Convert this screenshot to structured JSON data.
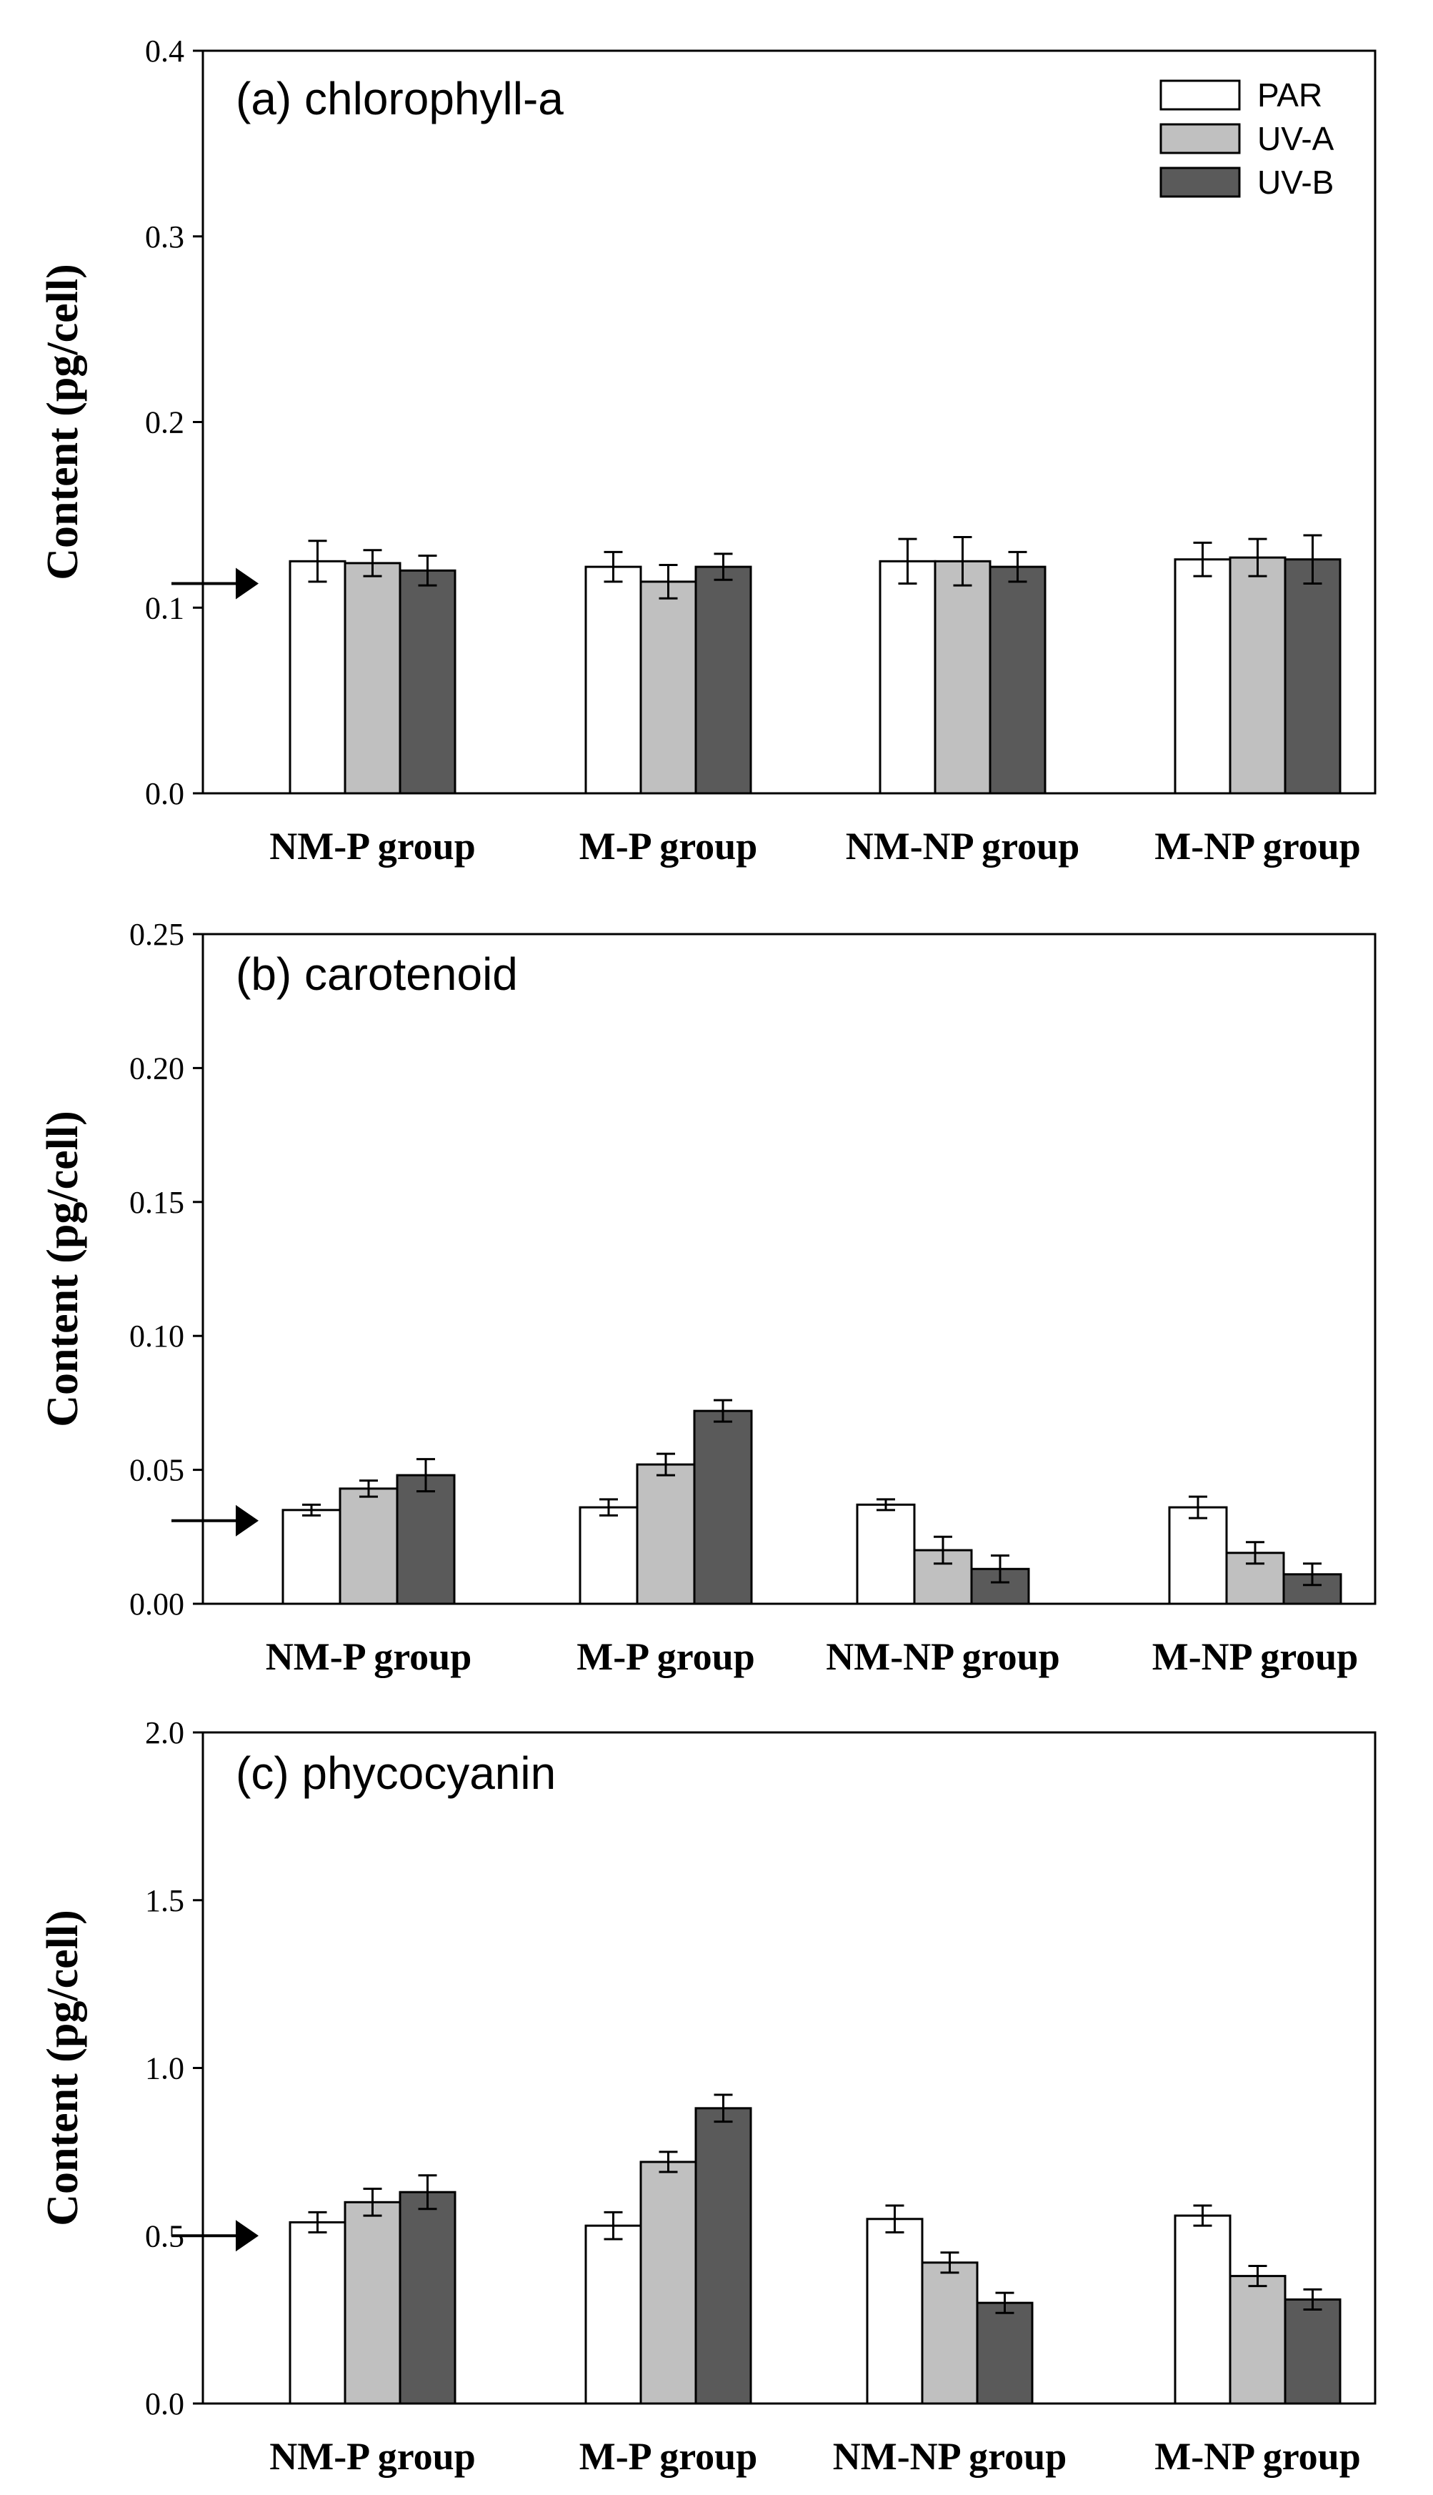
{
  "colors": {
    "PAR": "#ffffff",
    "UV-A": "#c0c0c0",
    "UV-B": "#5a5a5a",
    "stroke": "#000000"
  },
  "legend": [
    "PAR",
    "UV-A",
    "UV-B"
  ],
  "chart_data": [
    {
      "type": "bar",
      "title": "(a) chlorophyll-a",
      "ylabel": "Content (pg/cell)",
      "ylim": [
        0,
        0.4
      ],
      "yticks": [
        "0.0",
        "0.1",
        "0.2",
        "0.3",
        "0.4"
      ],
      "yticks_values": [
        0,
        0.1,
        0.2,
        0.3,
        0.4
      ],
      "arrow_value": 0.113,
      "categories": [
        "NM-P group",
        "M-P group",
        "NM-NP group",
        "M-NP group"
      ],
      "series": [
        {
          "name": "PAR",
          "values": [
            0.125,
            0.122,
            0.125,
            0.126
          ],
          "errors": [
            0.011,
            0.008,
            0.012,
            0.009
          ]
        },
        {
          "name": "UV-A",
          "values": [
            0.124,
            0.114,
            0.125,
            0.127
          ],
          "errors": [
            0.007,
            0.009,
            0.013,
            0.01
          ]
        },
        {
          "name": "UV-B",
          "values": [
            0.12,
            0.122,
            0.122,
            0.126
          ],
          "errors": [
            0.008,
            0.007,
            0.008,
            0.013
          ]
        }
      ]
    },
    {
      "type": "bar",
      "title": "(b) carotenoid",
      "ylabel": "Content (pg/cell)",
      "ylim": [
        0,
        0.25
      ],
      "yticks": [
        "0.00",
        "0.05",
        "0.10",
        "0.15",
        "0.20",
        "0.25"
      ],
      "yticks_values": [
        0,
        0.05,
        0.1,
        0.15,
        0.2,
        0.25
      ],
      "arrow_value": 0.031,
      "categories": [
        "NM-P group",
        "M-P group",
        "NM-NP group",
        "M-NP group"
      ],
      "series": [
        {
          "name": "PAR",
          "values": [
            0.035,
            0.036,
            0.037,
            0.036
          ],
          "errors": [
            0.002,
            0.003,
            0.002,
            0.004
          ]
        },
        {
          "name": "UV-A",
          "values": [
            0.043,
            0.052,
            0.02,
            0.019
          ],
          "errors": [
            0.003,
            0.004,
            0.005,
            0.004
          ]
        },
        {
          "name": "UV-B",
          "values": [
            0.048,
            0.072,
            0.013,
            0.011
          ],
          "errors": [
            0.006,
            0.004,
            0.005,
            0.004
          ]
        }
      ]
    },
    {
      "type": "bar",
      "title": "(c) phycocyanin",
      "ylabel": "Content (pg/cell)",
      "ylim": [
        0,
        2.0
      ],
      "yticks": [
        "0.0",
        "0.5",
        "1.0",
        "1.5",
        "2.0"
      ],
      "yticks_values": [
        0,
        0.5,
        1.0,
        1.5,
        2.0
      ],
      "arrow_value": 0.5,
      "categories": [
        "NM-P group",
        "M-P group",
        "NM-NP group",
        "M-NP group"
      ],
      "series": [
        {
          "name": "PAR",
          "values": [
            0.54,
            0.53,
            0.55,
            0.56
          ],
          "errors": [
            0.03,
            0.04,
            0.04,
            0.03
          ]
        },
        {
          "name": "UV-A",
          "values": [
            0.6,
            0.72,
            0.42,
            0.38
          ],
          "errors": [
            0.04,
            0.03,
            0.03,
            0.03
          ]
        },
        {
          "name": "UV-B",
          "values": [
            0.63,
            0.88,
            0.3,
            0.31
          ],
          "errors": [
            0.05,
            0.04,
            0.03,
            0.03
          ]
        }
      ]
    }
  ]
}
